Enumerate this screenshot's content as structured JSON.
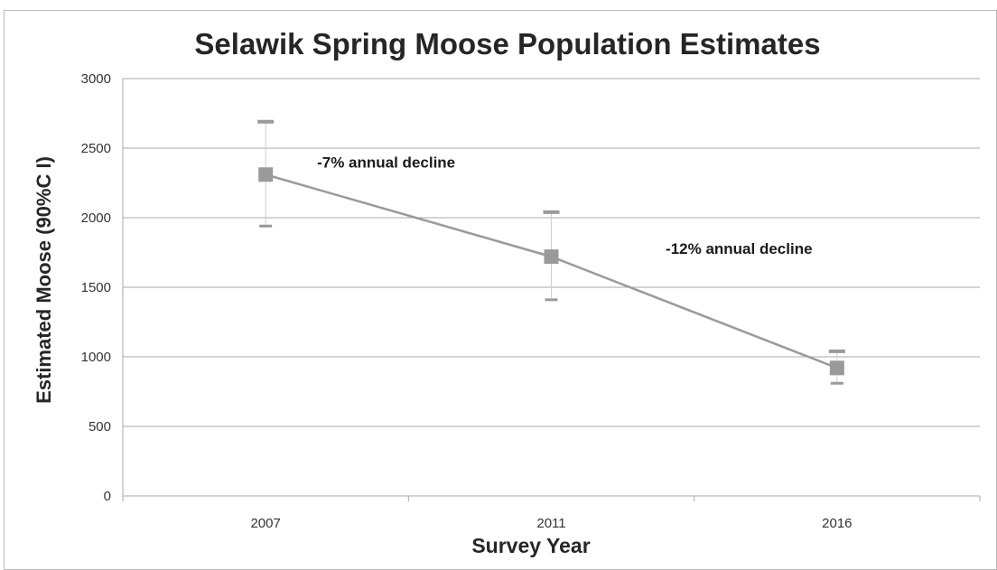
{
  "chart_data": {
    "type": "line",
    "title": "Selawik Spring Moose Population Estimates",
    "xlabel": "Survey Year",
    "ylabel": "Estimated Moose  (90%C I)",
    "categories": [
      "2007",
      "2011",
      "2016"
    ],
    "series": [
      {
        "values": [
          2310,
          1720,
          920
        ],
        "ci_upper": [
          2690,
          2040,
          1040
        ],
        "ci_lower": [
          1940,
          1410,
          810
        ],
        "color": "#9a9a9a"
      }
    ],
    "ylim": [
      0,
      3000
    ],
    "yticks": [
      0,
      500,
      1000,
      1500,
      2000,
      2500,
      3000
    ],
    "grid": true,
    "legend": "none",
    "annotations": [
      {
        "text": "-7% annual decline",
        "between": [
          "2007",
          "2011"
        ]
      },
      {
        "text": "-12% annual decline",
        "between": [
          "2011",
          "2016"
        ]
      }
    ]
  }
}
